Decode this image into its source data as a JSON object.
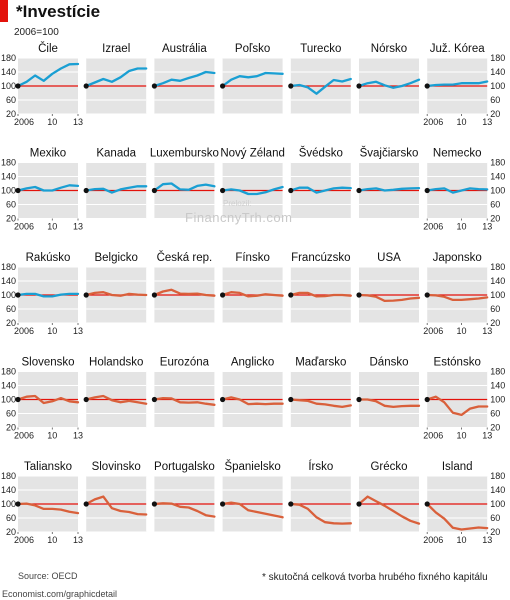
{
  "header": {
    "title": "*Investície",
    "base_note": "2006=100"
  },
  "footer": {
    "source": "Source: OECD",
    "credit": "Economist.com/graphicdetail",
    "footnote": "* skutočná celková tvorba hrubého fixného kapitálu"
  },
  "watermark": {
    "text": "FinancnyTrh.com",
    "small": "Prelozil:"
  },
  "colors": {
    "increase": "#1a9fd3",
    "decrease": "#d9603b",
    "baseline": "#e3120b",
    "panel_bg": "#e4e4e4",
    "grid": "#ffffff",
    "marker": "#111111"
  },
  "chart_data": {
    "type": "line",
    "layout": "small-multiples",
    "rows": 5,
    "columns": 7,
    "x": [
      2006,
      2007,
      2008,
      2009,
      2010,
      2011,
      2012,
      2013
    ],
    "x_ticks": [
      "2006",
      "10",
      "13"
    ],
    "y_ticks": [
      "180",
      "140",
      "100",
      "60",
      "20"
    ],
    "ylim": [
      20,
      180
    ],
    "reference_line": 100,
    "grid": true,
    "series": [
      {
        "name": "Čile",
        "trend": "increase",
        "values": [
          100,
          112,
          130,
          115,
          135,
          150,
          162,
          163
        ]
      },
      {
        "name": "Izrael",
        "trend": "increase",
        "values": [
          100,
          110,
          120,
          112,
          125,
          143,
          150,
          150
        ]
      },
      {
        "name": "Austrália",
        "trend": "increase",
        "values": [
          100,
          108,
          118,
          115,
          123,
          130,
          140,
          137
        ]
      },
      {
        "name": "Poľsko",
        "trend": "increase",
        "values": [
          100,
          118,
          128,
          125,
          128,
          137,
          136,
          135
        ]
      },
      {
        "name": "Turecko",
        "trend": "increase",
        "values": [
          100,
          103,
          96,
          78,
          98,
          117,
          113,
          120
        ]
      },
      {
        "name": "Nórsko",
        "trend": "increase",
        "values": [
          100,
          108,
          112,
          102,
          95,
          100,
          108,
          118
        ]
      },
      {
        "name": "Juž. Kórea",
        "trend": "increase",
        "values": [
          100,
          103,
          104,
          104,
          108,
          108,
          108,
          113
        ]
      },
      {
        "name": "Mexiko",
        "trend": "increase",
        "values": [
          100,
          106,
          110,
          100,
          100,
          108,
          115,
          113
        ]
      },
      {
        "name": "Kanada",
        "trend": "increase",
        "values": [
          100,
          104,
          105,
          94,
          103,
          108,
          112,
          112
        ]
      },
      {
        "name": "Luxembursko",
        "trend": "increase",
        "values": [
          100,
          118,
          120,
          103,
          102,
          113,
          117,
          112
        ]
      },
      {
        "name": "Nový Zéland",
        "trend": "increase",
        "values": [
          100,
          103,
          100,
          90,
          90,
          95,
          103,
          110
        ]
      },
      {
        "name": "Švédsko",
        "trend": "increase",
        "values": [
          100,
          108,
          108,
          94,
          100,
          106,
          108,
          107
        ]
      },
      {
        "name": "Švajčiarsko",
        "trend": "increase",
        "values": [
          100,
          104,
          106,
          100,
          102,
          105,
          106,
          107
        ]
      },
      {
        "name": "Nemecko",
        "trend": "increase",
        "values": [
          100,
          104,
          106,
          94,
          100,
          106,
          104,
          103
        ]
      },
      {
        "name": "Rakúsko",
        "trend": "increase",
        "values": [
          100,
          103,
          103,
          96,
          96,
          101,
          103,
          103
        ]
      },
      {
        "name": "Belgicko",
        "trend": "decrease",
        "values": [
          100,
          106,
          108,
          100,
          98,
          103,
          101,
          100
        ]
      },
      {
        "name": "Česká rep.",
        "trend": "decrease",
        "values": [
          100,
          110,
          115,
          104,
          103,
          104,
          100,
          98
        ]
      },
      {
        "name": "Fínsko",
        "trend": "decrease",
        "values": [
          100,
          108,
          106,
          96,
          98,
          102,
          100,
          98
        ]
      },
      {
        "name": "Francúzsko",
        "trend": "decrease",
        "values": [
          100,
          106,
          106,
          96,
          97,
          100,
          100,
          98
        ]
      },
      {
        "name": "USA",
        "trend": "decrease",
        "values": [
          100,
          99,
          95,
          83,
          84,
          86,
          90,
          92
        ]
      },
      {
        "name": "Japonsko",
        "trend": "decrease",
        "values": [
          100,
          99,
          95,
          86,
          86,
          88,
          90,
          93
        ]
      },
      {
        "name": "Slovensko",
        "trend": "decrease",
        "values": [
          100,
          108,
          110,
          90,
          95,
          104,
          95,
          92
        ]
      },
      {
        "name": "Holandsko",
        "trend": "decrease",
        "values": [
          100,
          106,
          110,
          98,
          92,
          96,
          92,
          88
        ]
      },
      {
        "name": "Eurozóna",
        "trend": "decrease",
        "values": [
          100,
          104,
          103,
          92,
          91,
          92,
          88,
          85
        ]
      },
      {
        "name": "Anglicko",
        "trend": "decrease",
        "values": [
          100,
          106,
          100,
          87,
          88,
          87,
          88,
          88
        ]
      },
      {
        "name": "Maďarsko",
        "trend": "decrease",
        "values": [
          100,
          98,
          96,
          88,
          86,
          82,
          79,
          83
        ]
      },
      {
        "name": "Dánsko",
        "trend": "decrease",
        "values": [
          100,
          100,
          95,
          82,
          79,
          81,
          82,
          82
        ]
      },
      {
        "name": "Estónsko",
        "trend": "decrease",
        "values": [
          100,
          108,
          92,
          62,
          56,
          74,
          80,
          80
        ]
      },
      {
        "name": "Taliansko",
        "trend": "decrease",
        "values": [
          100,
          101,
          96,
          86,
          86,
          84,
          78,
          74
        ]
      },
      {
        "name": "Slovinsko",
        "trend": "decrease",
        "values": [
          100,
          113,
          121,
          88,
          80,
          77,
          71,
          70
        ]
      },
      {
        "name": "Portugalsko",
        "trend": "decrease",
        "values": [
          100,
          102,
          101,
          92,
          90,
          80,
          68,
          64
        ]
      },
      {
        "name": "Španielsko",
        "trend": "decrease",
        "values": [
          100,
          104,
          100,
          82,
          77,
          72,
          67,
          62
        ]
      },
      {
        "name": "Írsko",
        "trend": "decrease",
        "values": [
          100,
          98,
          86,
          62,
          48,
          45,
          44,
          45
        ]
      },
      {
        "name": "Grécko",
        "trend": "decrease",
        "values": [
          100,
          121,
          108,
          95,
          80,
          65,
          52,
          44
        ]
      },
      {
        "name": "Island",
        "trend": "decrease",
        "values": [
          100,
          76,
          58,
          32,
          27,
          30,
          33,
          31
        ]
      }
    ]
  }
}
